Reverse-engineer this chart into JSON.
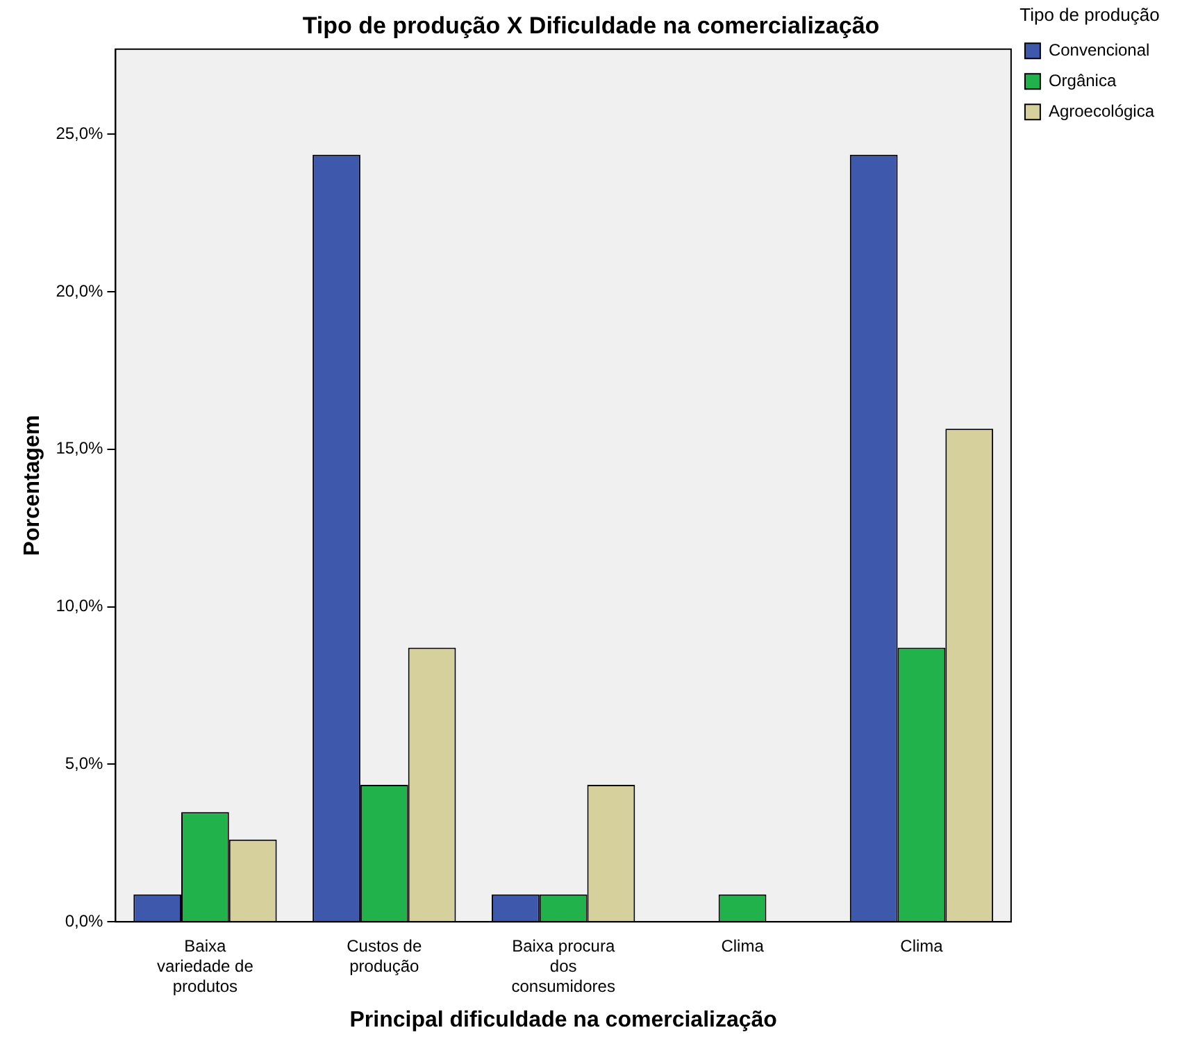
{
  "chart_data": {
    "type": "bar",
    "title": "Tipo de produção X Dificuldade na comercialização",
    "xlabel": "Principal dificuldade na comercialização",
    "ylabel": "Porcentagem",
    "legend_title": "Tipo de produção",
    "legend": "right",
    "categories": [
      "Baixa variedade de produtos",
      "Custos de produção",
      "Baixa procura dos consumidores",
      "Clima",
      "Clima"
    ],
    "series": [
      {
        "name": "Convencional",
        "color": "#3e58ac",
        "values": [
          0.87,
          24.35,
          0.87,
          0,
          24.35
        ]
      },
      {
        "name": "Orgânica",
        "color": "#22b24b",
        "values": [
          3.48,
          4.35,
          0.87,
          0.87,
          8.7
        ]
      },
      {
        "name": "Agroecológica",
        "color": "#d5d09c",
        "values": [
          2.61,
          8.7,
          4.35,
          0,
          15.65
        ]
      }
    ],
    "ylim": [
      0,
      27.7
    ],
    "yticks": [
      {
        "value": 0,
        "label": "0,0%"
      },
      {
        "value": 5,
        "label": "5,0%"
      },
      {
        "value": 10,
        "label": "10,0%"
      },
      {
        "value": 15,
        "label": "15,0%"
      },
      {
        "value": 20,
        "label": "20,0%"
      },
      {
        "value": 25,
        "label": "25,0%"
      }
    ],
    "grid": false
  }
}
